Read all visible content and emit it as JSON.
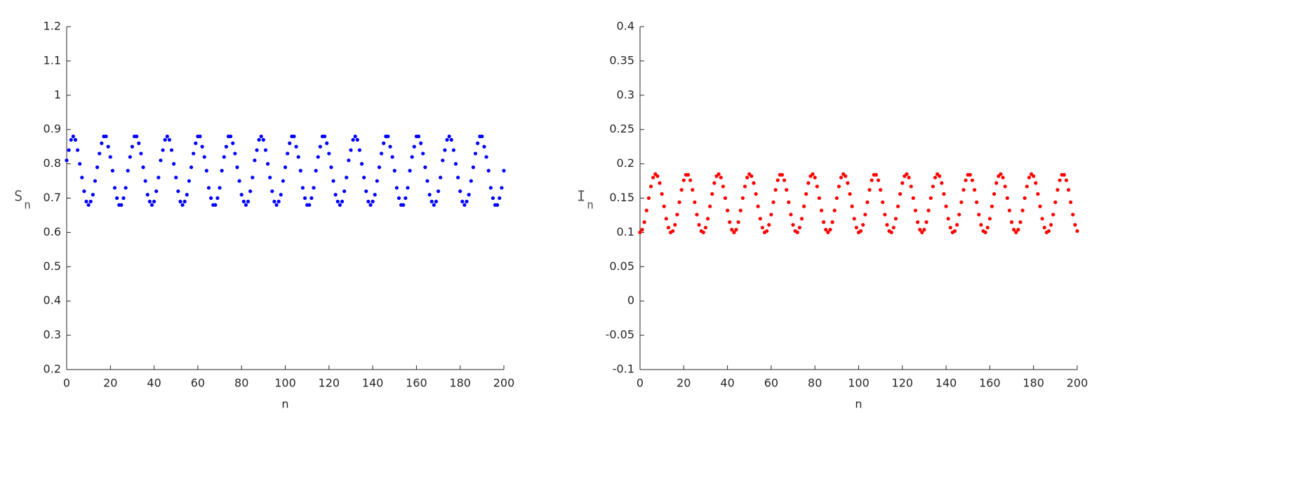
{
  "chart_data": [
    {
      "type": "scatter",
      "xlabel": "n",
      "ylabel": {
        "text": "S",
        "subscript": "n"
      },
      "color": "#0000ff",
      "xlim": [
        0,
        200
      ],
      "xticks": [
        0,
        20,
        40,
        60,
        80,
        100,
        120,
        140,
        160,
        180,
        200
      ],
      "ylim": [
        0.2,
        1.2
      ],
      "yticks": [
        0.2,
        0.3,
        0.4,
        0.5,
        0.6,
        0.7,
        0.8,
        0.9,
        1,
        1.1,
        1.2
      ],
      "x": [
        0,
        1,
        2,
        3,
        4,
        5,
        6,
        7,
        8,
        9,
        10,
        11,
        12,
        13,
        14,
        15,
        16,
        17,
        18,
        19,
        20,
        21,
        22,
        23,
        24,
        25,
        26,
        27,
        28,
        29,
        30,
        31,
        32,
        33,
        34,
        35,
        36,
        37,
        38,
        39,
        40,
        41,
        42,
        43,
        44,
        45,
        46,
        47,
        48,
        49,
        50,
        51,
        52,
        53,
        54,
        55,
        56,
        57,
        58,
        59,
        60,
        61,
        62,
        63,
        64,
        65,
        66,
        67,
        68,
        69,
        70,
        71,
        72,
        73,
        74,
        75,
        76,
        77,
        78,
        79,
        80,
        81,
        82,
        83,
        84,
        85,
        86,
        87,
        88,
        89,
        90,
        91,
        92,
        93,
        94,
        95,
        96,
        97,
        98,
        99,
        100,
        101,
        102,
        103,
        104,
        105,
        106,
        107,
        108,
        109,
        110,
        111,
        112,
        113,
        114,
        115,
        116,
        117,
        118,
        119,
        120,
        121,
        122,
        123,
        124,
        125,
        126,
        127,
        128,
        129,
        130,
        131,
        132,
        133,
        134,
        135,
        136,
        137,
        138,
        139,
        140,
        141,
        142,
        143,
        144,
        145,
        146,
        147,
        148,
        149,
        150,
        151,
        152,
        153,
        154,
        155,
        156,
        157,
        158,
        159,
        160,
        161,
        162,
        163,
        164,
        165,
        166,
        167,
        168,
        169,
        170,
        171,
        172,
        173,
        174,
        175,
        176,
        177,
        178,
        179,
        180,
        181,
        182,
        183,
        184,
        185,
        186,
        187,
        188,
        189,
        190,
        191,
        192,
        193,
        194,
        195,
        196,
        197,
        198,
        199,
        200
      ],
      "values": [
        0.81,
        0.84,
        0.87,
        0.88,
        0.87,
        0.84,
        0.8,
        0.76,
        0.72,
        0.69,
        0.68,
        0.69,
        0.71,
        0.75,
        0.79,
        0.83,
        0.86,
        0.88,
        0.88,
        0.85,
        0.82,
        0.78,
        0.73,
        0.7,
        0.68,
        0.68,
        0.7,
        0.73,
        0.78,
        0.82,
        0.85,
        0.88,
        0.88,
        0.86,
        0.83,
        0.79,
        0.75,
        0.71,
        0.69,
        0.68,
        0.69,
        0.72,
        0.76,
        0.81,
        0.84,
        0.87,
        0.88,
        0.87,
        0.84,
        0.8,
        0.76,
        0.72,
        0.69,
        0.68,
        0.69,
        0.71,
        0.75,
        0.79,
        0.83,
        0.86,
        0.88,
        0.88,
        0.85,
        0.82,
        0.78,
        0.73,
        0.7,
        0.68,
        0.68,
        0.7,
        0.73,
        0.78,
        0.82,
        0.85,
        0.88,
        0.88,
        0.86,
        0.83,
        0.79,
        0.75,
        0.71,
        0.69,
        0.68,
        0.69,
        0.72,
        0.76,
        0.81,
        0.84,
        0.87,
        0.88,
        0.87,
        0.84,
        0.8,
        0.76,
        0.72,
        0.69,
        0.68,
        0.69,
        0.71,
        0.75,
        0.79,
        0.83,
        0.86,
        0.88,
        0.88,
        0.85,
        0.82,
        0.78,
        0.73,
        0.7,
        0.68,
        0.68,
        0.7,
        0.73,
        0.78,
        0.82,
        0.85,
        0.88,
        0.88,
        0.86,
        0.83,
        0.79,
        0.75,
        0.71,
        0.69,
        0.68,
        0.69,
        0.72,
        0.76,
        0.81,
        0.84,
        0.87,
        0.88,
        0.87,
        0.84,
        0.8,
        0.76,
        0.72,
        0.69,
        0.68,
        0.69,
        0.71,
        0.75,
        0.79,
        0.83,
        0.86,
        0.88,
        0.88,
        0.85,
        0.82,
        0.78,
        0.73,
        0.7,
        0.68,
        0.68,
        0.7,
        0.73,
        0.78,
        0.82,
        0.85,
        0.88,
        0.88,
        0.86,
        0.83,
        0.79,
        0.75,
        0.71,
        0.69,
        0.68,
        0.69,
        0.72,
        0.76,
        0.81,
        0.84,
        0.87,
        0.88,
        0.87,
        0.84,
        0.8,
        0.76,
        0.72,
        0.69,
        0.68,
        0.69,
        0.71,
        0.75,
        0.79,
        0.83,
        0.86,
        0.88,
        0.88,
        0.85,
        0.82,
        0.78,
        0.73,
        0.7,
        0.68,
        0.68,
        0.7,
        0.73,
        0.78
      ]
    },
    {
      "type": "scatter",
      "xlabel": "n",
      "ylabel": {
        "text": "I",
        "subscript": "n"
      },
      "color": "#ff0000",
      "xlim": [
        0,
        200
      ],
      "xticks": [
        0,
        20,
        40,
        60,
        80,
        100,
        120,
        140,
        160,
        180,
        200
      ],
      "ylim": [
        -0.1,
        0.4
      ],
      "yticks": [
        -0.1,
        -0.05,
        0,
        0.05,
        0.1,
        0.15,
        0.2,
        0.25,
        0.3,
        0.35,
        0.4
      ],
      "x": [
        0,
        1,
        2,
        3,
        4,
        5,
        6,
        7,
        8,
        9,
        10,
        11,
        12,
        13,
        14,
        15,
        16,
        17,
        18,
        19,
        20,
        21,
        22,
        23,
        24,
        25,
        26,
        27,
        28,
        29,
        30,
        31,
        32,
        33,
        34,
        35,
        36,
        37,
        38,
        39,
        40,
        41,
        42,
        43,
        44,
        45,
        46,
        47,
        48,
        49,
        50,
        51,
        52,
        53,
        54,
        55,
        56,
        57,
        58,
        59,
        60,
        61,
        62,
        63,
        64,
        65,
        66,
        67,
        68,
        69,
        70,
        71,
        72,
        73,
        74,
        75,
        76,
        77,
        78,
        79,
        80,
        81,
        82,
        83,
        84,
        85,
        86,
        87,
        88,
        89,
        90,
        91,
        92,
        93,
        94,
        95,
        96,
        97,
        98,
        99,
        100,
        101,
        102,
        103,
        104,
        105,
        106,
        107,
        108,
        109,
        110,
        111,
        112,
        113,
        114,
        115,
        116,
        117,
        118,
        119,
        120,
        121,
        122,
        123,
        124,
        125,
        126,
        127,
        128,
        129,
        130,
        131,
        132,
        133,
        134,
        135,
        136,
        137,
        138,
        139,
        140,
        141,
        142,
        143,
        144,
        145,
        146,
        147,
        148,
        149,
        150,
        151,
        152,
        153,
        154,
        155,
        156,
        157,
        158,
        159,
        160,
        161,
        162,
        163,
        164,
        165,
        166,
        167,
        168,
        169,
        170,
        171,
        172,
        173,
        174,
        175,
        176,
        177,
        178,
        179,
        180,
        181,
        182,
        183,
        184,
        185,
        186,
        187,
        188,
        189,
        190,
        191,
        192,
        193,
        194,
        195,
        196,
        197,
        198,
        199,
        200
      ],
      "values": [
        0.1,
        0.104,
        0.115,
        0.132,
        0.15,
        0.167,
        0.18,
        0.185,
        0.182,
        0.172,
        0.156,
        0.138,
        0.12,
        0.107,
        0.1,
        0.102,
        0.111,
        0.126,
        0.144,
        0.162,
        0.176,
        0.184,
        0.184,
        0.176,
        0.162,
        0.144,
        0.126,
        0.111,
        0.102,
        0.1,
        0.107,
        0.12,
        0.138,
        0.156,
        0.172,
        0.182,
        0.185,
        0.18,
        0.167,
        0.15,
        0.132,
        0.115,
        0.104,
        0.1,
        0.104,
        0.115,
        0.132,
        0.15,
        0.167,
        0.18,
        0.185,
        0.182,
        0.172,
        0.156,
        0.138,
        0.12,
        0.107,
        0.1,
        0.102,
        0.111,
        0.126,
        0.144,
        0.162,
        0.176,
        0.184,
        0.184,
        0.176,
        0.162,
        0.144,
        0.126,
        0.111,
        0.102,
        0.1,
        0.107,
        0.12,
        0.138,
        0.156,
        0.172,
        0.182,
        0.185,
        0.18,
        0.167,
        0.15,
        0.132,
        0.115,
        0.104,
        0.1,
        0.104,
        0.115,
        0.132,
        0.15,
        0.167,
        0.18,
        0.185,
        0.182,
        0.172,
        0.156,
        0.138,
        0.12,
        0.107,
        0.1,
        0.102,
        0.111,
        0.126,
        0.144,
        0.162,
        0.176,
        0.184,
        0.184,
        0.176,
        0.162,
        0.144,
        0.126,
        0.111,
        0.102,
        0.1,
        0.107,
        0.12,
        0.138,
        0.156,
        0.172,
        0.182,
        0.185,
        0.18,
        0.167,
        0.15,
        0.132,
        0.115,
        0.104,
        0.1,
        0.104,
        0.115,
        0.132,
        0.15,
        0.167,
        0.18,
        0.185,
        0.182,
        0.172,
        0.156,
        0.138,
        0.12,
        0.107,
        0.1,
        0.102,
        0.111,
        0.126,
        0.144,
        0.162,
        0.176,
        0.184,
        0.184,
        0.176,
        0.162,
        0.144,
        0.126,
        0.111,
        0.102,
        0.1,
        0.107,
        0.12,
        0.138,
        0.156,
        0.172,
        0.182,
        0.185,
        0.18,
        0.167,
        0.15,
        0.132,
        0.115,
        0.104,
        0.1,
        0.104,
        0.115,
        0.132,
        0.15,
        0.167,
        0.18,
        0.185,
        0.182,
        0.172,
        0.156,
        0.138,
        0.12,
        0.107,
        0.1,
        0.102,
        0.111,
        0.126,
        0.144,
        0.162,
        0.176,
        0.184,
        0.184,
        0.176,
        0.162,
        0.144,
        0.126,
        0.111,
        0.102
      ]
    }
  ]
}
